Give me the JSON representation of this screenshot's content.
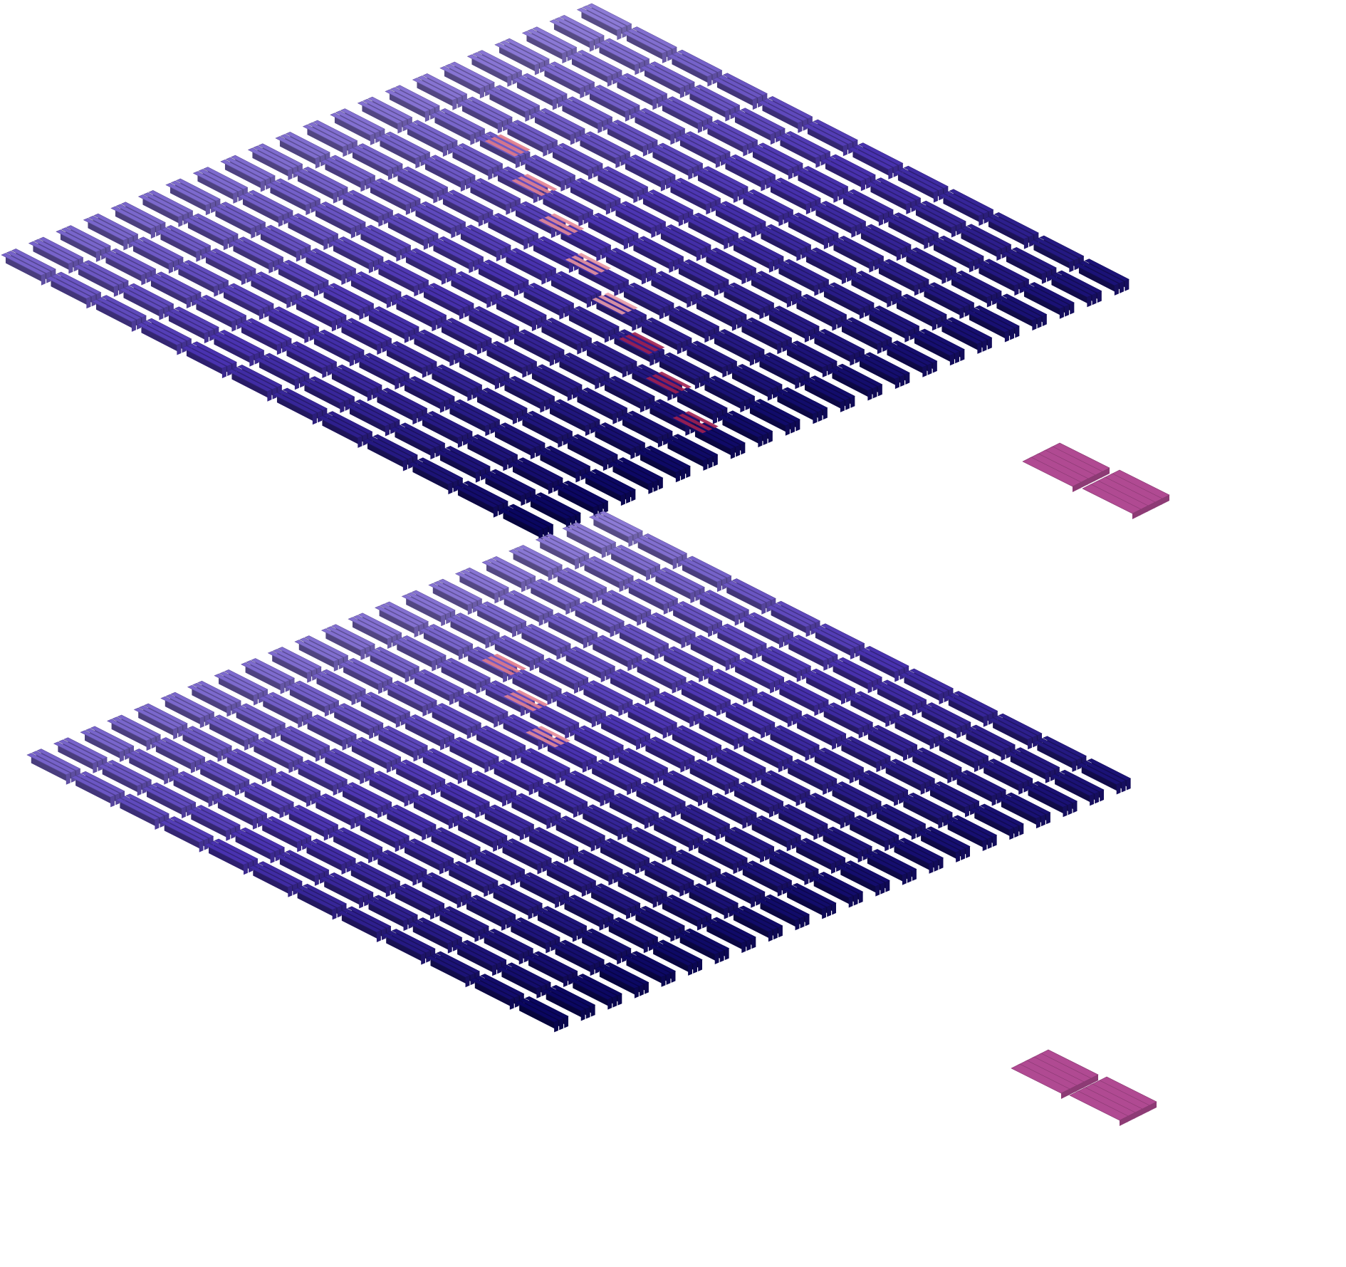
{
  "scene": {
    "kind": "isometric-tiled-layers",
    "text_labels": "none",
    "background": "#ffffff",
    "layers": [
      {
        "name": "upper-layer",
        "rows": 22,
        "tiles_per_row": 12,
        "colors": {
          "light": "#8c7ad6",
          "mid": "#4a33b0",
          "dark": "#0a0660",
          "accent": "#e07a8a",
          "accent_dark": "#a02050",
          "pad": "#b04a92"
        },
        "highlight_bars": 8,
        "pads": 2
      },
      {
        "name": "lower-layer",
        "rows": 22,
        "tiles_per_row": 12,
        "colors": {
          "light": "#8c7ad6",
          "mid": "#4a33b0",
          "dark": "#0a0660",
          "accent": "#e07a8a",
          "accent_dark": "#a02050",
          "pad": "#b04a92"
        },
        "highlight_bars": 3,
        "pads": 2
      }
    ]
  }
}
